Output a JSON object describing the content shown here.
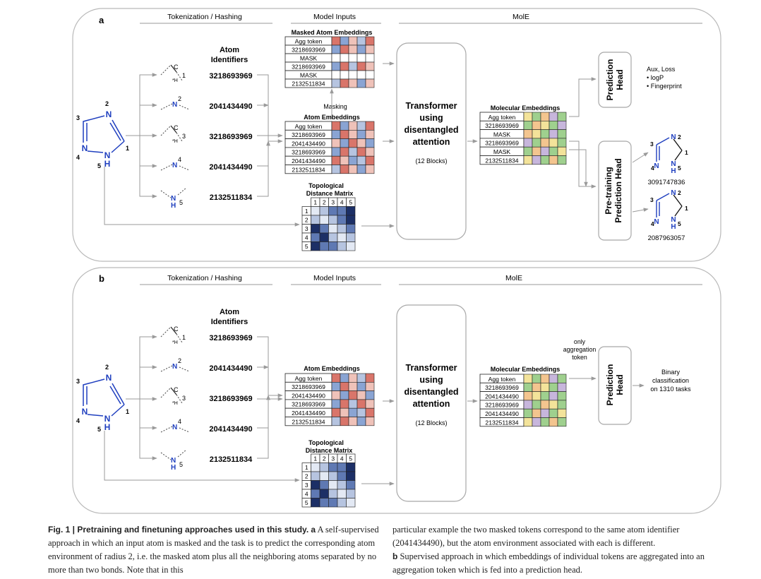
{
  "panels": {
    "a": {
      "label": "a",
      "section_tokenization": "Tokenization / Hashing",
      "section_model_inputs": "Model Inputs",
      "section_mole": "MolE",
      "atom_identifiers_line1": "Atom",
      "atom_identifiers_line2": "Identifiers",
      "identifiers": [
        "3218693969",
        "2041434490",
        "3218693969",
        "2041434490",
        "2132511834"
      ],
      "masked_title": "Masked Atom Embeddings",
      "masked_rows": [
        "Agg token",
        "3218693969",
        "MASK",
        "3218693969",
        "MASK",
        "2132511834"
      ],
      "masking_label": "Masking",
      "atom_emb_title": "Atom Embeddings",
      "atom_emb_rows": [
        "Agg token",
        "3218693969",
        "2041434490",
        "3218693969",
        "2041434490",
        "2132511834"
      ],
      "topo_title_line1": "Topological",
      "topo_title_line2": "Distance Matrix",
      "topo_headers": [
        "1",
        "2",
        "3",
        "4",
        "5"
      ],
      "transformer_lines": [
        "Transformer",
        "using",
        "disentangled",
        "attention"
      ],
      "blocks": "(12 Blocks)",
      "mol_emb_title": "Molecular Embeddings",
      "mol_rows": [
        "Agg token",
        "3218693969",
        "MASK",
        "3218693969",
        "MASK",
        "2132511834"
      ],
      "prediction_head": [
        "Prediction",
        "Head"
      ],
      "aux_lines": [
        "Aux, Loss",
        "• logP",
        "• Fingerprint"
      ],
      "pretraining_head": [
        "Pre-training",
        "Prediction Head"
      ],
      "output_ids": [
        "3091747836",
        "2087963057"
      ]
    },
    "b": {
      "label": "b",
      "section_tokenization": "Tokenization / Hashing",
      "section_model_inputs": "Model Inputs",
      "section_mole": "MolE",
      "atom_identifiers_line1": "Atom",
      "atom_identifiers_line2": "Identifiers",
      "identifiers": [
        "3218693969",
        "2041434490",
        "3218693969",
        "2041434490",
        "2132511834"
      ],
      "atom_emb_title": "Atom Embeddings",
      "atom_emb_rows": [
        "Agg token",
        "3218693969",
        "2041434490",
        "3218693969",
        "2041434490",
        "2132511834"
      ],
      "topo_title_line1": "Topological",
      "topo_title_line2": "Distance Matrix",
      "topo_headers": [
        "1",
        "2",
        "3",
        "4",
        "5"
      ],
      "transformer_lines": [
        "Transformer",
        "using",
        "disentangled",
        "attention"
      ],
      "blocks": "(12 Blocks)",
      "mol_emb_title": "Molecular Embeddings",
      "mol_rows": [
        "Agg token",
        "3218693969",
        "2041434490",
        "3218693969",
        "2041434490",
        "2132511834"
      ],
      "only_agg_lines": [
        "only",
        "aggregation",
        "token"
      ],
      "prediction_head": [
        "Prediction",
        "Head"
      ],
      "binary_lines": [
        "Binary",
        "classification",
        "on 1310 tasks"
      ]
    }
  },
  "molecule_labels": {
    "ring_numbers": [
      "1",
      "2",
      "3",
      "4",
      "5"
    ],
    "N": "N",
    "H": "H",
    "C": "C",
    "sub_h": "*H"
  },
  "colors": {
    "blue": "#1f3fbf",
    "heat_dark": "#1c2f66",
    "heat_mid": "#5f79b3",
    "heat_light": "#b6c4e0",
    "heat_pale": "#e3e9f4",
    "red": "#d9756a",
    "pale_red": "#efc2b9",
    "mid_blue": "#8aa4d3",
    "green": "#9fd08e",
    "yellow": "#f3e39a",
    "orange": "#f3c58f",
    "lavender": "#c7b6dc"
  },
  "caption": {
    "left_bold": "Fig. 1 | Pretraining and finetuning approaches used in this study.",
    "left_bold_a": "a",
    "left_text": "A self-supervised approach in which an input atom is masked and the task is to predict the corresponding atom environment of radius 2, i.e. the masked atom plus all the neighboring atoms separated by no more than two bonds. Note that in this",
    "right_text": "particular example the two masked tokens correspond to the same atom identifier (2041434490), but the atom environment associated with each is different.",
    "right_bold_b": "b",
    "right_text_b": "Supervised approach in which embeddings of individual tokens are aggregated into an aggregation token which is fed into a prediction head."
  }
}
